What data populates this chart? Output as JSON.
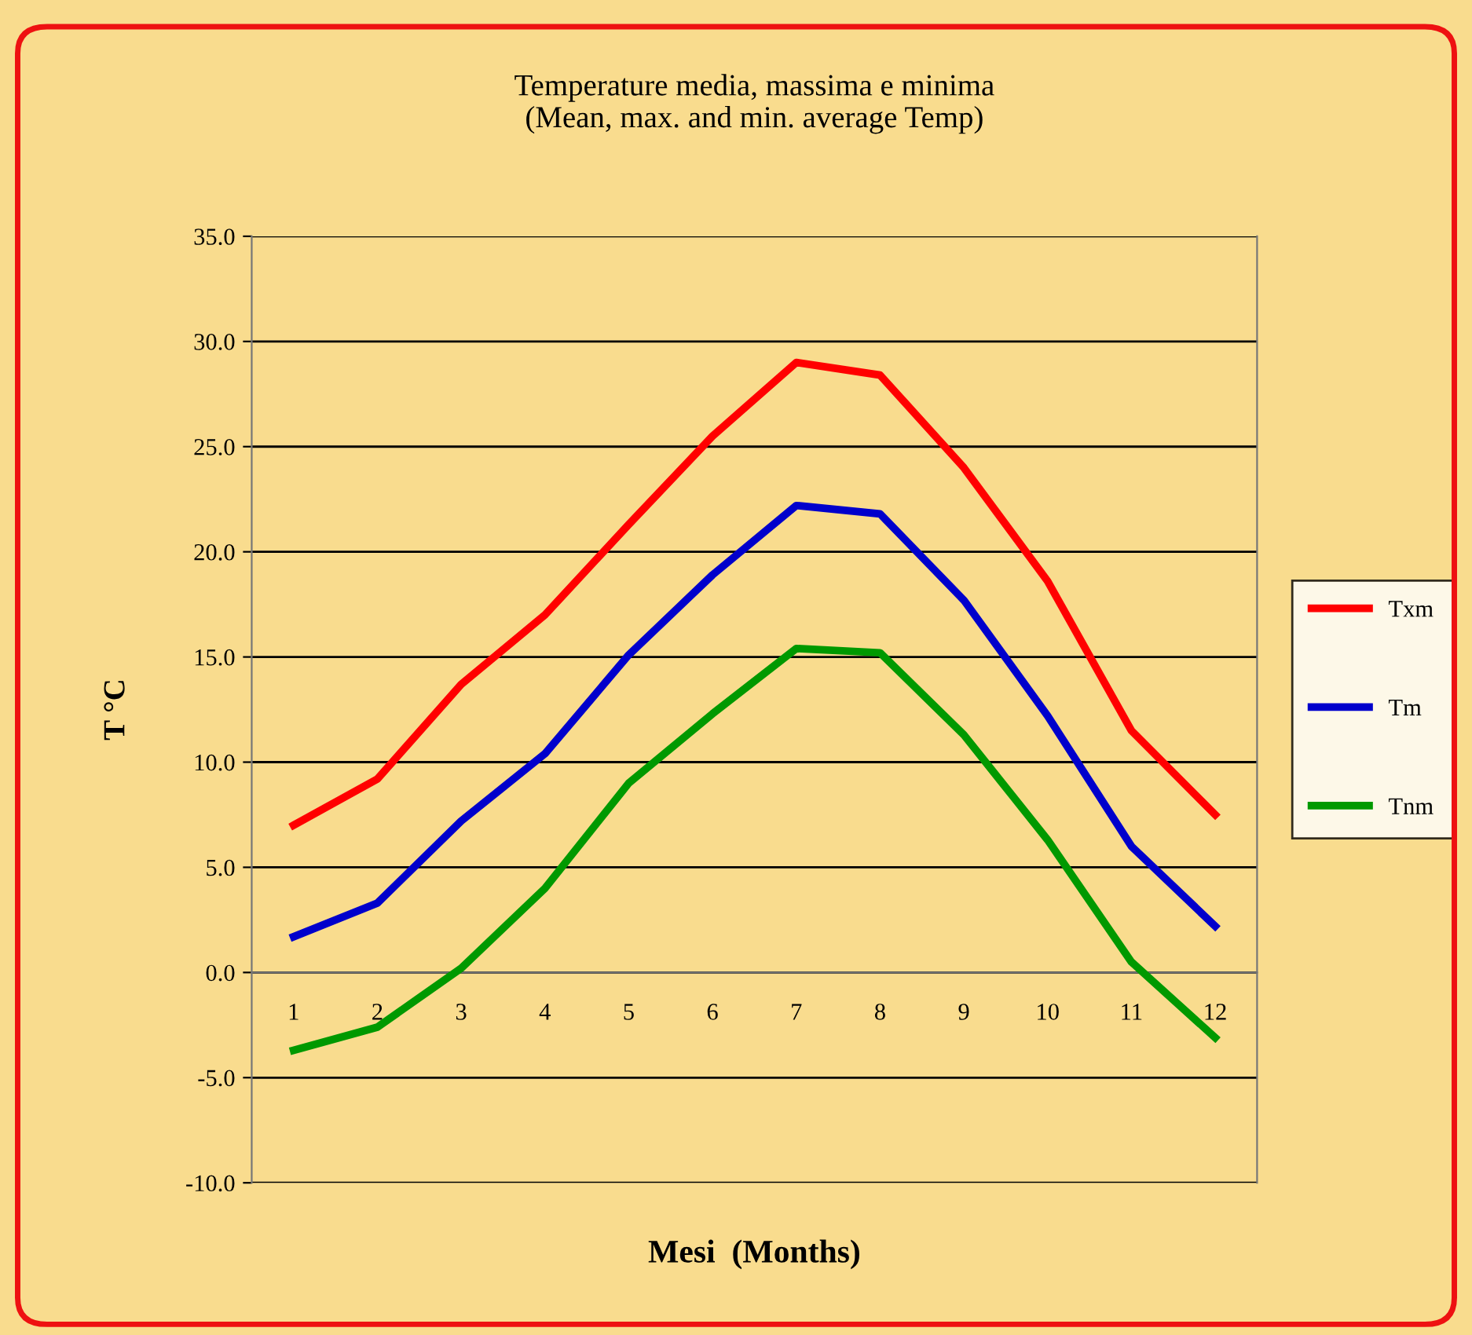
{
  "chart_data": {
    "type": "line",
    "title": "Temperature media, massima e minima\n(Mean, max. and min. average Temp)",
    "xlabel": "Mesi  (Months)",
    "ylabel": "T °C",
    "categories": [
      "1",
      "2",
      "3",
      "4",
      "5",
      "6",
      "7",
      "8",
      "9",
      "10",
      "11",
      "12"
    ],
    "series": [
      {
        "name": "Txm",
        "color": "#ff0000",
        "values": [
          7.0,
          9.2,
          13.7,
          17.0,
          21.3,
          25.5,
          29.0,
          28.4,
          24.0,
          18.6,
          11.5,
          7.5
        ]
      },
      {
        "name": "Tm",
        "color": "#0000cc",
        "values": [
          1.7,
          3.3,
          7.2,
          10.4,
          15.1,
          18.9,
          22.2,
          21.8,
          17.7,
          12.2,
          6.0,
          2.2
        ]
      },
      {
        "name": "Tnm",
        "color": "#009900",
        "values": [
          -3.7,
          -2.6,
          0.2,
          4.0,
          9.0,
          12.3,
          15.4,
          15.2,
          11.3,
          6.3,
          0.5,
          -3.1
        ]
      }
    ],
    "ylim": [
      -10,
      35
    ],
    "yticks": [
      {
        "value": -10,
        "label": "-10.0"
      },
      {
        "value": -5,
        "label": "-5.0"
      },
      {
        "value": 0,
        "label": "0.0"
      },
      {
        "value": 5,
        "label": "5.0"
      },
      {
        "value": 10,
        "label": "10.0"
      },
      {
        "value": 15,
        "label": "15.0"
      },
      {
        "value": 20,
        "label": "20.0"
      },
      {
        "value": 25,
        "label": "25.0"
      },
      {
        "value": 30,
        "label": "30.0"
      },
      {
        "value": 35,
        "label": "35.0"
      }
    ],
    "grid": "y",
    "legend": "right",
    "marker": "none",
    "line_style": "solid"
  }
}
